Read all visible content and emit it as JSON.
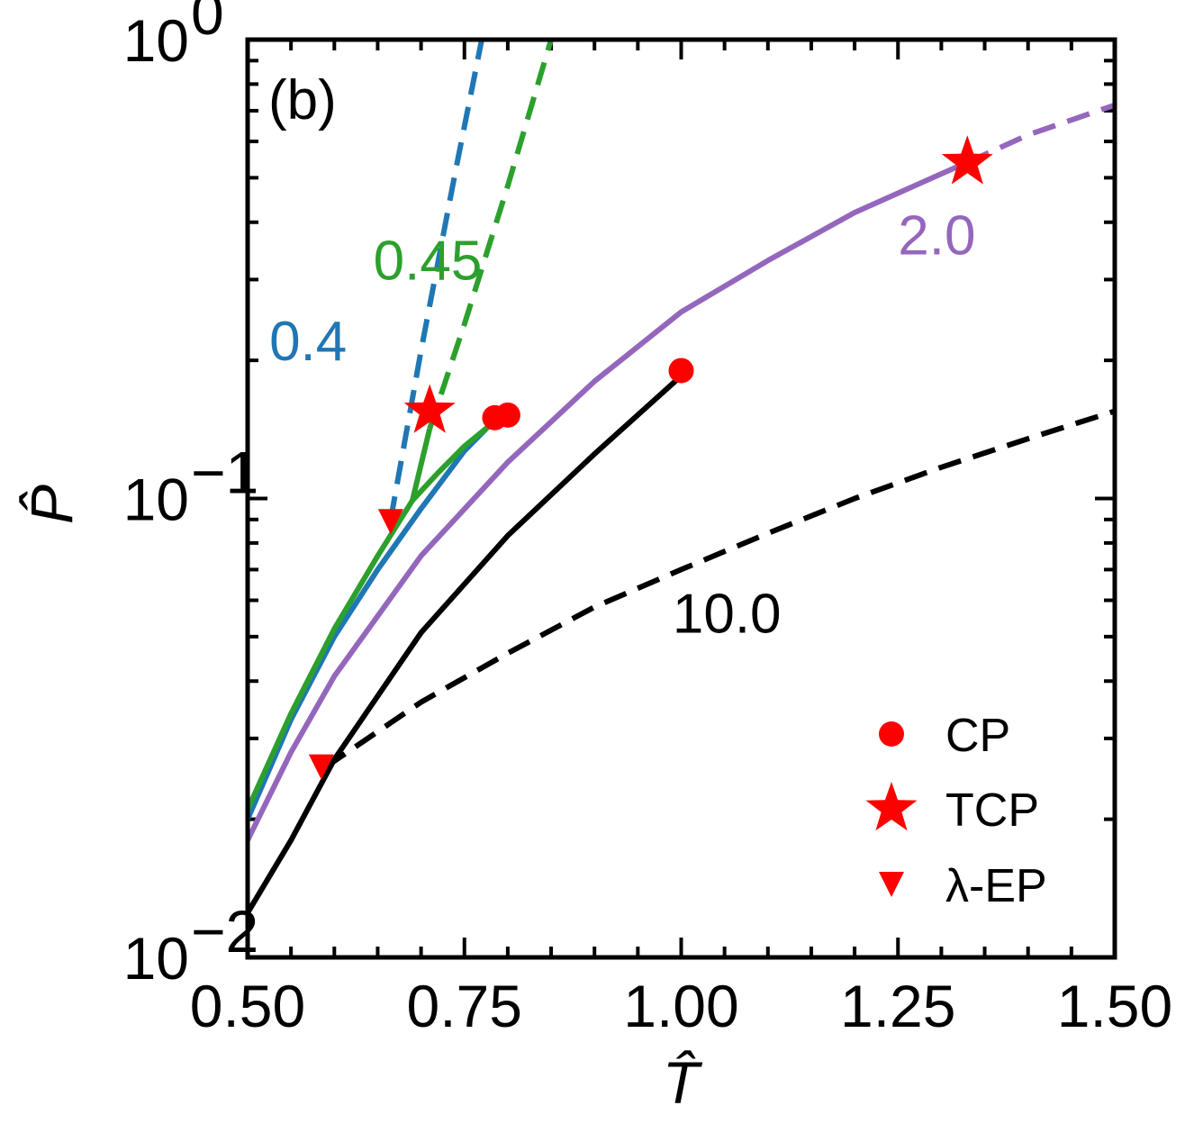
{
  "chart_data": {
    "type": "line",
    "panel_label": "(b)",
    "xlabel": "T̂",
    "ylabel": "P̂",
    "xlim": [
      0.5,
      1.5
    ],
    "ylim": [
      0.01,
      1.0
    ],
    "yscale": "log",
    "x_ticks": [
      {
        "value": 0.5,
        "label": "0.50"
      },
      {
        "value": 0.75,
        "label": "0.75"
      },
      {
        "value": 1.0,
        "label": "1.00"
      },
      {
        "value": 1.25,
        "label": "1.25"
      },
      {
        "value": 1.5,
        "label": "1.50"
      }
    ],
    "y_ticks": [
      {
        "value": 0.01,
        "base": "10",
        "exp": "−2"
      },
      {
        "value": 0.1,
        "base": "10",
        "exp": "−1"
      },
      {
        "value": 1.0,
        "base": "10",
        "exp": "0"
      }
    ],
    "colors": {
      "blue": "#1f77b4",
      "green": "#2ca02c",
      "purple": "#9467bd",
      "black": "#000000",
      "red": "#ff0000"
    },
    "series": [
      {
        "name": "0.4",
        "label": "0.4",
        "color": "#1f77b4",
        "style": "solid",
        "x": [
          0.5,
          0.55,
          0.6,
          0.65,
          0.7,
          0.75,
          0.78
        ],
        "y": [
          0.02,
          0.033,
          0.05,
          0.07,
          0.095,
          0.127,
          0.145
        ]
      },
      {
        "name": "0.4 dashed",
        "color": "#1f77b4",
        "style": "dashed",
        "x": [
          0.665,
          0.7,
          0.74,
          0.77
        ],
        "y": [
          0.09,
          0.21,
          0.52,
          1.0
        ]
      },
      {
        "name": "0.45",
        "label": "0.45",
        "color": "#2ca02c",
        "style": "solid",
        "x": [
          0.5,
          0.55,
          0.6,
          0.65,
          0.69,
          0.72,
          0.75,
          0.79
        ],
        "y": [
          0.021,
          0.034,
          0.052,
          0.075,
          0.099,
          0.114,
          0.13,
          0.15
        ]
      },
      {
        "name": "0.45 branch",
        "color": "#2ca02c",
        "style": "solid",
        "x": [
          0.69,
          0.71
        ],
        "y": [
          0.099,
          0.142
        ]
      },
      {
        "name": "0.45 dashed",
        "color": "#2ca02c",
        "style": "dashed",
        "x": [
          0.71,
          0.75,
          0.8,
          0.85
        ],
        "y": [
          0.142,
          0.24,
          0.48,
          1.0
        ]
      },
      {
        "name": "2.0",
        "label": "2.0",
        "color": "#9467bd",
        "style": "solid",
        "x": [
          0.5,
          0.55,
          0.6,
          0.7,
          0.8,
          0.9,
          1.0,
          1.1,
          1.2,
          1.3,
          1.33
        ],
        "y": [
          0.018,
          0.028,
          0.041,
          0.075,
          0.12,
          0.18,
          0.255,
          0.33,
          0.42,
          0.51,
          0.54
        ]
      },
      {
        "name": "2.0 dashed",
        "color": "#9467bd",
        "style": "dashed",
        "x": [
          1.33,
          1.4,
          1.5
        ],
        "y": [
          0.54,
          0.62,
          0.72
        ]
      },
      {
        "name": "10.0",
        "label": "10.0",
        "color": "#000000",
        "style": "solid",
        "x": [
          0.5,
          0.55,
          0.6,
          0.7,
          0.8,
          0.9,
          1.0
        ],
        "y": [
          0.0125,
          0.018,
          0.027,
          0.051,
          0.083,
          0.125,
          0.185
        ]
      },
      {
        "name": "10.0 dashed",
        "color": "#000000",
        "style": "dashed",
        "x": [
          0.59,
          0.7,
          0.8,
          0.9,
          1.0,
          1.1,
          1.2,
          1.3,
          1.4,
          1.5
        ],
        "y": [
          0.026,
          0.036,
          0.046,
          0.058,
          0.07,
          0.084,
          0.1,
          0.117,
          0.135,
          0.155
        ]
      }
    ],
    "markers": [
      {
        "type": "CP",
        "shape": "circle",
        "x": 0.785,
        "y": 0.15
      },
      {
        "type": "CP",
        "shape": "circle",
        "x": 0.8,
        "y": 0.152
      },
      {
        "type": "CP",
        "shape": "circle",
        "x": 1.0,
        "y": 0.19
      },
      {
        "type": "TCP",
        "shape": "star",
        "x": 0.71,
        "y": 0.155
      },
      {
        "type": "TCP",
        "shape": "star",
        "x": 1.33,
        "y": 0.54
      },
      {
        "type": "λ-EP",
        "shape": "triangle-down",
        "x": 0.665,
        "y": 0.089
      },
      {
        "type": "λ-EP",
        "shape": "triangle-down",
        "x": 0.585,
        "y": 0.026
      }
    ],
    "series_labels": [
      {
        "text": "0.4",
        "color": "#1f77b4",
        "x": 0.525,
        "y": 0.2
      },
      {
        "text": "0.45",
        "color": "#2ca02c",
        "x": 0.645,
        "y": 0.3
      },
      {
        "text": "2.0",
        "color": "#9467bd",
        "x": 1.25,
        "y": 0.34
      },
      {
        "text": "10.0",
        "color": "#000000",
        "x": 0.99,
        "y": 0.051
      }
    ],
    "legend": {
      "position": "bottom-right",
      "entries": [
        {
          "label": "CP",
          "shape": "circle"
        },
        {
          "label": "TCP",
          "shape": "star"
        },
        {
          "label": "λ-EP",
          "shape": "triangle-down"
        }
      ]
    }
  }
}
